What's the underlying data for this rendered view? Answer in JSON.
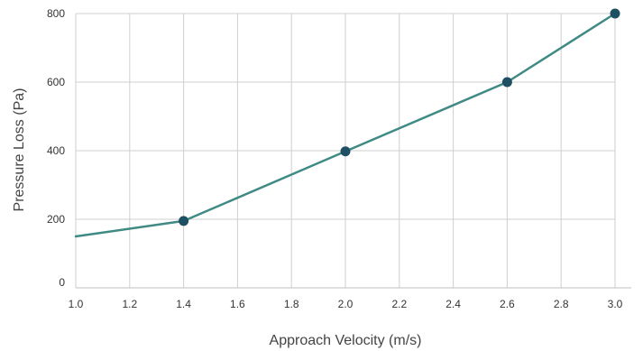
{
  "chart_data": {
    "type": "line",
    "title": "",
    "xlabel": "Approach Velocity (m/s)",
    "ylabel": "Pressure Loss (Pa)",
    "xlim": [
      1.0,
      3.0
    ],
    "ylim": [
      0,
      800
    ],
    "x_ticks": [
      "1.0",
      "1.2",
      "1.4",
      "1.6",
      "1.8",
      "2.0",
      "2.2",
      "2.4",
      "2.6",
      "2.8",
      "3.0"
    ],
    "y_ticks": [
      "0",
      "200",
      "400",
      "600",
      "800"
    ],
    "grid": true,
    "legend": "none",
    "series": [
      {
        "x": [
          1.0,
          1.4,
          2.0,
          2.6,
          3.0
        ],
        "y": [
          150,
          195,
          398,
          600,
          800
        ],
        "markers": [
          false,
          true,
          true,
          true,
          true
        ],
        "line_color": "#3f8a84",
        "marker_color": "#1f4f63"
      }
    ]
  }
}
